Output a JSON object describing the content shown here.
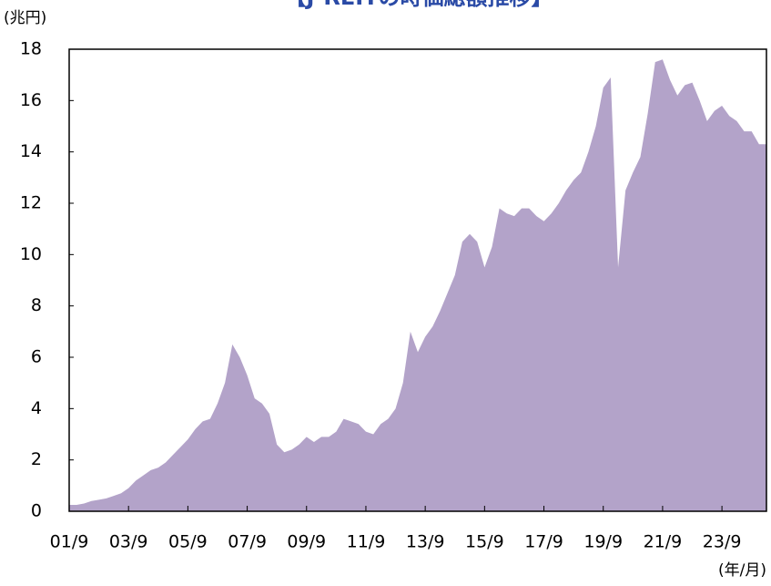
{
  "chart_data": {
    "type": "area",
    "title": "【J-REITの時価総額推移】",
    "y_unit_label": "(兆円)",
    "x_unit_label": "(年/月)",
    "x": [
      "01/9",
      "01/12",
      "02/3",
      "02/6",
      "02/9",
      "02/12",
      "03/3",
      "03/6",
      "03/9",
      "03/12",
      "04/3",
      "04/6",
      "04/9",
      "04/12",
      "05/3",
      "05/6",
      "05/9",
      "05/12",
      "06/3",
      "06/6",
      "06/9",
      "06/12",
      "07/3",
      "07/6",
      "07/9",
      "07/12",
      "08/3",
      "08/6",
      "08/9",
      "08/12",
      "09/3",
      "09/6",
      "09/9",
      "09/12",
      "10/3",
      "10/6",
      "10/9",
      "10/12",
      "11/3",
      "11/6",
      "11/9",
      "11/12",
      "12/3",
      "12/6",
      "12/9",
      "12/12",
      "13/3",
      "13/6",
      "13/9",
      "13/12",
      "14/3",
      "14/6",
      "14/9",
      "14/12",
      "15/3",
      "15/6",
      "15/9",
      "15/12",
      "16/3",
      "16/6",
      "16/9",
      "16/12",
      "17/3",
      "17/6",
      "17/9",
      "17/12",
      "18/3",
      "18/6",
      "18/9",
      "18/12",
      "19/3",
      "19/6",
      "19/9",
      "19/12",
      "20/3",
      "20/6",
      "20/9",
      "20/12",
      "21/3",
      "21/6",
      "21/9",
      "21/12",
      "22/3",
      "22/6",
      "22/9",
      "22/12",
      "23/3",
      "23/6",
      "23/9",
      "23/12",
      "24/3",
      "24/6",
      "24/9",
      "24/12",
      "25/3"
    ],
    "series": [
      {
        "color": "#b3a3c9",
        "values": [
          0.25,
          0.25,
          0.3,
          0.4,
          0.45,
          0.5,
          0.6,
          0.7,
          0.9,
          1.2,
          1.4,
          1.6,
          1.7,
          1.9,
          2.2,
          2.5,
          2.8,
          3.2,
          3.5,
          3.6,
          4.2,
          5.0,
          6.5,
          6.0,
          5.3,
          4.4,
          4.2,
          3.8,
          2.6,
          2.3,
          2.4,
          2.6,
          2.9,
          2.7,
          2.9,
          2.9,
          3.1,
          3.6,
          3.5,
          3.4,
          3.1,
          3.0,
          3.4,
          3.6,
          4.0,
          5.0,
          7.0,
          6.2,
          6.8,
          7.2,
          7.8,
          8.5,
          9.2,
          10.5,
          10.8,
          10.5,
          9.5,
          10.3,
          11.8,
          11.6,
          11.5,
          11.8,
          11.8,
          11.5,
          11.3,
          11.6,
          12.0,
          12.5,
          12.9,
          13.2,
          14.0,
          15.0,
          16.5,
          16.9,
          9.5,
          12.5,
          13.2,
          13.8,
          15.5,
          17.5,
          17.6,
          16.8,
          16.2,
          16.6,
          16.7,
          16.0,
          15.2,
          15.6,
          15.8,
          15.4,
          15.2,
          14.8,
          14.8,
          14.3,
          14.3
        ]
      }
    ],
    "xticks": [
      "01/9",
      "03/9",
      "05/9",
      "07/9",
      "09/9",
      "11/9",
      "13/9",
      "15/9",
      "17/9",
      "19/9",
      "21/9",
      "23/9"
    ],
    "ylim": [
      0,
      18
    ],
    "yticks": [
      0,
      2,
      4,
      6,
      8,
      10,
      12,
      14,
      16,
      18
    ]
  }
}
